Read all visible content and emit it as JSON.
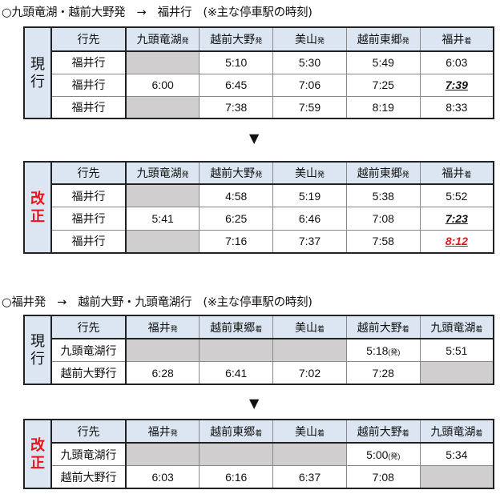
{
  "sections": [
    {
      "title": "○九頭竜湖・越前大野発　→　福井行　(※主な停車駅の時刻)",
      "tables": [
        {
          "label": "現行",
          "label_color": "#111111",
          "headers": [
            [
              "行先",
              ""
            ],
            [
              "九頭竜湖",
              "発"
            ],
            [
              "越前大野",
              "発"
            ],
            [
              "美山",
              "発"
            ],
            [
              "越前東郷",
              "発"
            ],
            [
              "福井",
              "着"
            ]
          ],
          "rows": [
            {
              "dest": "福井行",
              "cells": [
                null,
                "5:10",
                "5:30",
                "5:49",
                "6:03"
              ]
            },
            {
              "dest": "福井行",
              "cells": [
                "6:00",
                "6:45",
                "7:06",
                "7:25",
                {
                  "v": "7:39",
                  "style": "highlight"
                }
              ]
            },
            {
              "dest": "福井行",
              "cells": [
                null,
                "7:38",
                "7:59",
                "8:19",
                "8:33"
              ]
            }
          ]
        },
        {
          "label": "改正",
          "label_color": "#e8141b",
          "headers": [
            [
              "行先",
              ""
            ],
            [
              "九頭竜湖",
              "発"
            ],
            [
              "越前大野",
              "発"
            ],
            [
              "美山",
              "発"
            ],
            [
              "越前東郷",
              "発"
            ],
            [
              "福井",
              "着"
            ]
          ],
          "rows": [
            {
              "dest": "福井行",
              "cells": [
                null,
                "4:58",
                "5:19",
                "5:38",
                "5:52"
              ]
            },
            {
              "dest": "福井行",
              "cells": [
                "5:41",
                "6:25",
                "6:46",
                "7:08",
                {
                  "v": "7:23",
                  "style": "highlight"
                }
              ]
            },
            {
              "dest": "福井行",
              "cells": [
                null,
                "7:16",
                "7:37",
                "7:58",
                {
                  "v": "8:12",
                  "style": "highlight-red"
                }
              ]
            }
          ]
        }
      ]
    },
    {
      "title": "○福井発　→　越前大野・九頭竜湖行　(※主な停車駅の時刻)",
      "tables": [
        {
          "label": "現行",
          "label_color": "#111111",
          "headers": [
            [
              "行先",
              ""
            ],
            [
              "福井",
              "発"
            ],
            [
              "越前東郷",
              "着"
            ],
            [
              "美山",
              "着"
            ],
            [
              "越前大野",
              "着"
            ],
            [
              "九頭竜湖",
              "着"
            ]
          ],
          "rows": [
            {
              "dest": "九頭竜湖行",
              "cells": [
                null,
                null,
                null,
                {
                  "v": "5:18",
                  "note": "(発)"
                },
                "5:51"
              ]
            },
            {
              "dest": "越前大野行",
              "cells": [
                "6:28",
                "6:41",
                "7:02",
                "7:28",
                null
              ]
            }
          ]
        },
        {
          "label": "改正",
          "label_color": "#e8141b",
          "headers": [
            [
              "行先",
              ""
            ],
            [
              "福井",
              "発"
            ],
            [
              "越前東郷",
              "着"
            ],
            [
              "美山",
              "着"
            ],
            [
              "越前大野",
              "着"
            ],
            [
              "九頭竜湖",
              "着"
            ]
          ],
          "rows": [
            {
              "dest": "九頭竜湖行",
              "cells": [
                null,
                null,
                null,
                {
                  "v": "5:00",
                  "note": "(発)"
                },
                "5:34"
              ]
            },
            {
              "dest": "越前大野行",
              "cells": [
                "6:03",
                "6:16",
                "6:37",
                "7:08",
                null
              ]
            }
          ]
        }
      ]
    }
  ],
  "arrow": "▼"
}
